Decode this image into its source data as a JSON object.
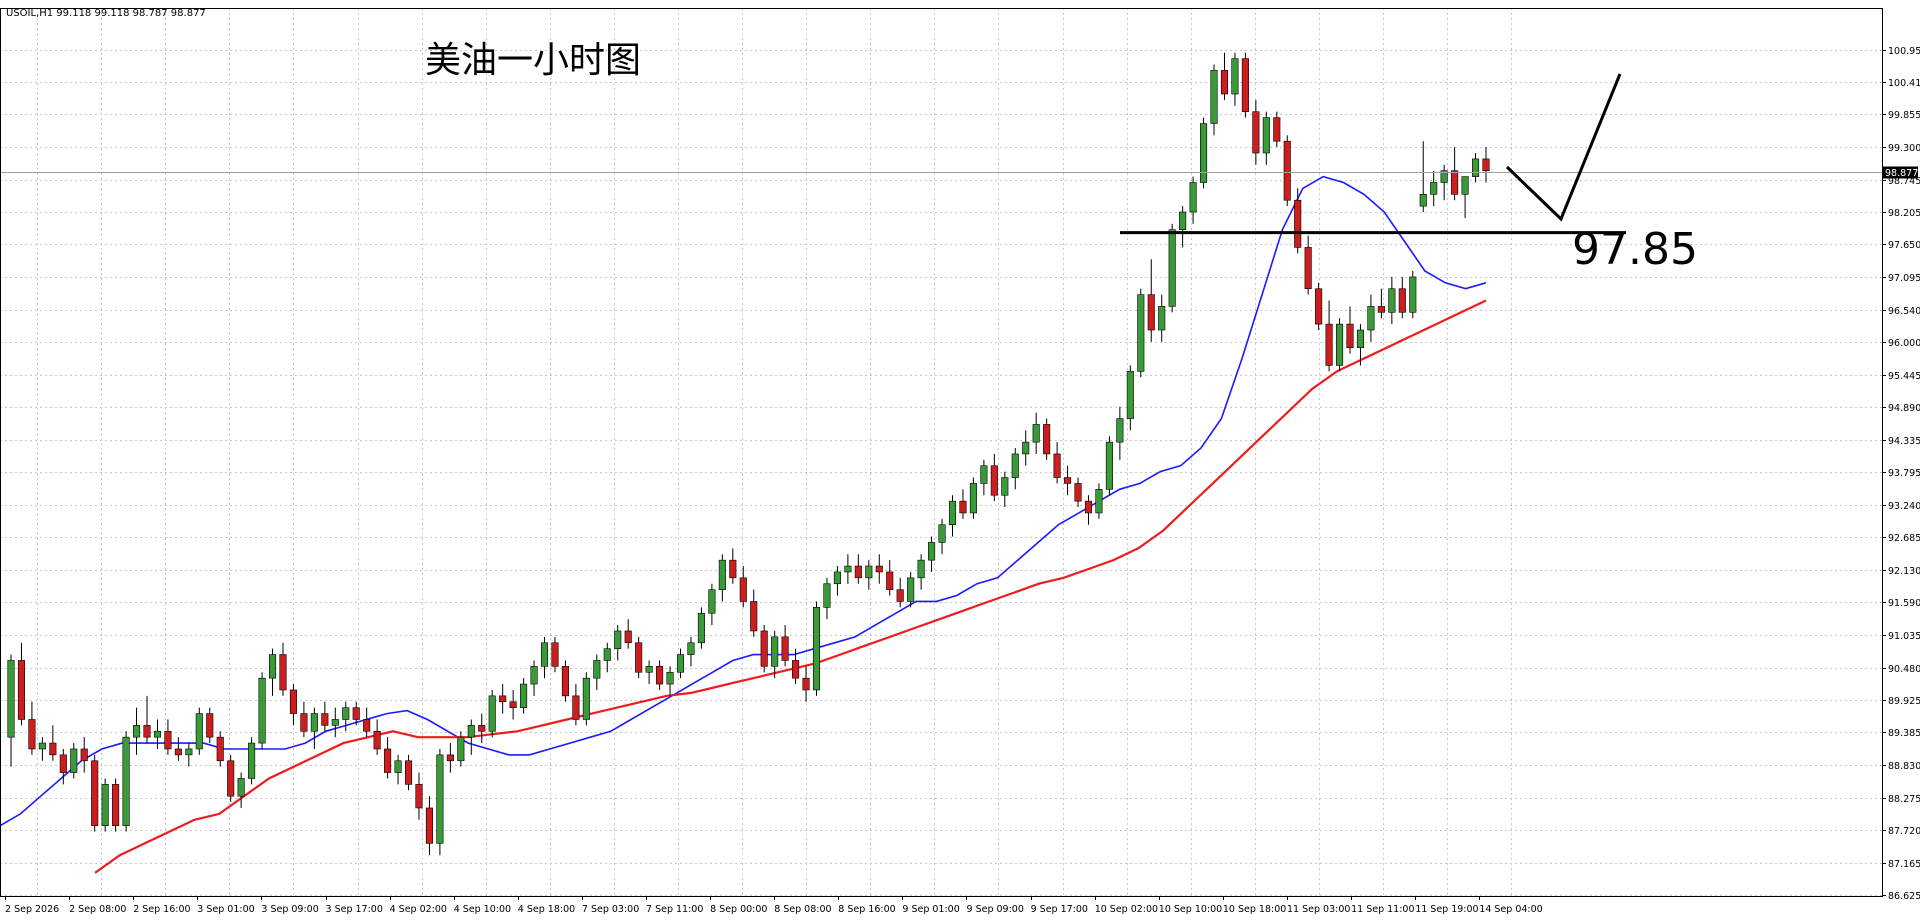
{
  "window": {
    "header": "USOIL,H1  99.118 99.118 98.787 98.877"
  },
  "colors": {
    "background": "#ffffff",
    "grid": "#c8c8c8",
    "frame": "#000000",
    "bull_candle": "#3a9a3a",
    "bear_candle": "#cc1e1e",
    "ma_fast": "#1a1aff",
    "ma_slow": "#ee1c1c",
    "annotation": "#000000"
  },
  "chart_data": {
    "type": "candlestick",
    "symbol": "USOIL",
    "timeframe": "H1",
    "title": "美油一小时图",
    "ylim": [
      86.625,
      101.2
    ],
    "grid": true,
    "y_ticks": [
      "100.950",
      "100.410",
      "99.855",
      "99.300",
      "98.745",
      "98.205",
      "97.650",
      "97.095",
      "96.540",
      "96.000",
      "95.445",
      "94.890",
      "94.335",
      "93.795",
      "93.240",
      "92.685",
      "92.130",
      "91.590",
      "91.035",
      "90.480",
      "89.925",
      "89.385",
      "88.830",
      "88.275",
      "87.720",
      "87.165",
      "86.625"
    ],
    "x_labels": [
      "2 Sep 2026",
      "2 Sep 08:00",
      "2 Sep 16:00",
      "3 Sep 01:00",
      "3 Sep 09:00",
      "3 Sep 17:00",
      "4 Sep 02:00",
      "4 Sep 10:00",
      "4 Sep 18:00",
      "7 Sep 03:00",
      "7 Sep 11:00",
      "8 Sep 00:00",
      "8 Sep 08:00",
      "8 Sep 16:00",
      "9 Sep 01:00",
      "9 Sep 09:00",
      "9 Sep 17:00",
      "10 Sep 02:00",
      "10 Sep 10:00",
      "10 Sep 18:00",
      "11 Sep 03:00",
      "11 Sep 11:00",
      "11 Sep 19:00",
      "14 Sep 04:00"
    ],
    "current_price": 98.877,
    "current_price_label": "98.877",
    "support_level": 97.85,
    "support_label": "97.85",
    "candles": [
      [
        89.3,
        90.7,
        88.8,
        90.6
      ],
      [
        90.6,
        90.9,
        89.5,
        89.6
      ],
      [
        89.6,
        89.9,
        89.0,
        89.1
      ],
      [
        89.1,
        89.3,
        88.9,
        89.2
      ],
      [
        89.2,
        89.5,
        88.9,
        89.0
      ],
      [
        89.0,
        89.1,
        88.5,
        88.7
      ],
      [
        88.7,
        89.2,
        88.6,
        89.1
      ],
      [
        89.1,
        89.3,
        88.7,
        88.9
      ],
      [
        88.9,
        89.0,
        87.7,
        87.8
      ],
      [
        87.8,
        88.6,
        87.7,
        88.5
      ],
      [
        88.5,
        88.6,
        87.7,
        87.8
      ],
      [
        87.8,
        89.4,
        87.7,
        89.3
      ],
      [
        89.3,
        89.8,
        89.0,
        89.5
      ],
      [
        89.5,
        90.0,
        89.2,
        89.3
      ],
      [
        89.3,
        89.6,
        89.1,
        89.4
      ],
      [
        89.4,
        89.6,
        89.0,
        89.1
      ],
      [
        89.1,
        89.3,
        88.9,
        89.0
      ],
      [
        89.0,
        89.2,
        88.8,
        89.1
      ],
      [
        89.1,
        89.8,
        89.0,
        89.7
      ],
      [
        89.7,
        89.8,
        89.2,
        89.3
      ],
      [
        89.3,
        89.4,
        88.8,
        88.9
      ],
      [
        88.9,
        89.0,
        88.2,
        88.3
      ],
      [
        88.3,
        88.7,
        88.1,
        88.6
      ],
      [
        88.6,
        89.3,
        88.5,
        89.2
      ],
      [
        89.2,
        90.4,
        89.1,
        90.3
      ],
      [
        90.3,
        90.8,
        90.0,
        90.7
      ],
      [
        90.7,
        90.9,
        90.0,
        90.1
      ],
      [
        90.1,
        90.2,
        89.5,
        89.7
      ],
      [
        89.7,
        89.9,
        89.3,
        89.4
      ],
      [
        89.4,
        89.8,
        89.1,
        89.7
      ],
      [
        89.7,
        89.9,
        89.4,
        89.5
      ],
      [
        89.5,
        89.8,
        89.3,
        89.6
      ],
      [
        89.6,
        89.9,
        89.4,
        89.8
      ],
      [
        89.8,
        89.9,
        89.5,
        89.6
      ],
      [
        89.6,
        89.8,
        89.3,
        89.4
      ],
      [
        89.4,
        89.6,
        89.0,
        89.1
      ],
      [
        89.1,
        89.3,
        88.6,
        88.7
      ],
      [
        88.7,
        89.0,
        88.5,
        88.9
      ],
      [
        88.9,
        89.0,
        88.4,
        88.5
      ],
      [
        88.5,
        88.7,
        87.9,
        88.1
      ],
      [
        88.1,
        88.3,
        87.3,
        87.5
      ],
      [
        87.5,
        89.1,
        87.3,
        89.0
      ],
      [
        89.0,
        89.2,
        88.7,
        88.9
      ],
      [
        88.9,
        89.4,
        88.8,
        89.3
      ],
      [
        89.3,
        89.6,
        89.0,
        89.5
      ],
      [
        89.5,
        89.7,
        89.2,
        89.4
      ],
      [
        89.4,
        90.1,
        89.3,
        90.0
      ],
      [
        90.0,
        90.2,
        89.7,
        89.9
      ],
      [
        89.9,
        90.1,
        89.6,
        89.8
      ],
      [
        89.8,
        90.3,
        89.7,
        90.2
      ],
      [
        90.2,
        90.6,
        90.0,
        90.5
      ],
      [
        90.5,
        91.0,
        90.3,
        90.9
      ],
      [
        90.9,
        91.0,
        90.4,
        90.5
      ],
      [
        90.5,
        90.6,
        89.9,
        90.0
      ],
      [
        90.0,
        90.2,
        89.5,
        89.6
      ],
      [
        89.6,
        90.4,
        89.5,
        90.3
      ],
      [
        90.3,
        90.7,
        90.1,
        90.6
      ],
      [
        90.6,
        90.9,
        90.4,
        90.8
      ],
      [
        90.8,
        91.2,
        90.6,
        91.1
      ],
      [
        91.1,
        91.3,
        90.8,
        90.9
      ],
      [
        90.9,
        91.0,
        90.3,
        90.4
      ],
      [
        90.4,
        90.6,
        90.2,
        90.5
      ],
      [
        90.5,
        90.6,
        90.1,
        90.2
      ],
      [
        90.2,
        90.5,
        90.0,
        90.4
      ],
      [
        90.4,
        90.8,
        90.3,
        90.7
      ],
      [
        90.7,
        91.0,
        90.5,
        90.9
      ],
      [
        90.9,
        91.5,
        90.8,
        91.4
      ],
      [
        91.4,
        91.9,
        91.2,
        91.8
      ],
      [
        91.8,
        92.4,
        91.6,
        92.3
      ],
      [
        92.3,
        92.5,
        91.9,
        92.0
      ],
      [
        92.0,
        92.2,
        91.5,
        91.6
      ],
      [
        91.6,
        91.8,
        91.0,
        91.1
      ],
      [
        91.1,
        91.2,
        90.4,
        90.5
      ],
      [
        90.5,
        91.1,
        90.3,
        91.0
      ],
      [
        91.0,
        91.2,
        90.5,
        90.6
      ],
      [
        90.6,
        90.8,
        90.2,
        90.3
      ],
      [
        90.3,
        90.5,
        89.9,
        90.1
      ],
      [
        90.1,
        91.6,
        90.0,
        91.5
      ],
      [
        91.5,
        92.0,
        91.3,
        91.9
      ],
      [
        91.9,
        92.2,
        91.7,
        92.1
      ],
      [
        92.1,
        92.4,
        91.9,
        92.2
      ],
      [
        92.2,
        92.4,
        91.9,
        92.0
      ],
      [
        92.0,
        92.3,
        91.8,
        92.2
      ],
      [
        92.2,
        92.4,
        91.9,
        92.1
      ],
      [
        92.1,
        92.3,
        91.7,
        91.8
      ],
      [
        91.8,
        92.0,
        91.5,
        91.6
      ],
      [
        91.6,
        92.1,
        91.5,
        92.0
      ],
      [
        92.0,
        92.4,
        91.8,
        92.3
      ],
      [
        92.3,
        92.7,
        92.1,
        92.6
      ],
      [
        92.6,
        93.0,
        92.4,
        92.9
      ],
      [
        92.9,
        93.4,
        92.7,
        93.3
      ],
      [
        93.3,
        93.5,
        93.0,
        93.1
      ],
      [
        93.1,
        93.7,
        93.0,
        93.6
      ],
      [
        93.6,
        94.0,
        93.4,
        93.9
      ],
      [
        93.9,
        94.1,
        93.3,
        93.4
      ],
      [
        93.4,
        93.8,
        93.2,
        93.7
      ],
      [
        93.7,
        94.2,
        93.5,
        94.1
      ],
      [
        94.1,
        94.5,
        93.9,
        94.3
      ],
      [
        94.3,
        94.8,
        94.1,
        94.6
      ],
      [
        94.6,
        94.7,
        94.0,
        94.1
      ],
      [
        94.1,
        94.3,
        93.6,
        93.7
      ],
      [
        93.7,
        93.9,
        93.4,
        93.6
      ],
      [
        93.6,
        93.7,
        93.2,
        93.3
      ],
      [
        93.3,
        93.4,
        92.9,
        93.1
      ],
      [
        93.1,
        93.6,
        93.0,
        93.5
      ],
      [
        93.5,
        94.4,
        93.4,
        94.3
      ],
      [
        94.3,
        94.9,
        94.0,
        94.7
      ],
      [
        94.7,
        95.6,
        94.5,
        95.5
      ],
      [
        95.5,
        96.9,
        95.4,
        96.8
      ],
      [
        96.8,
        97.4,
        96.0,
        96.2
      ],
      [
        96.2,
        96.8,
        96.0,
        96.6
      ],
      [
        96.6,
        98.0,
        96.5,
        97.9
      ],
      [
        97.9,
        98.3,
        97.6,
        98.2
      ],
      [
        98.2,
        98.8,
        98.0,
        98.7
      ],
      [
        98.7,
        99.8,
        98.6,
        99.7
      ],
      [
        99.7,
        100.7,
        99.5,
        100.6
      ],
      [
        100.6,
        100.9,
        100.1,
        100.2
      ],
      [
        100.2,
        100.9,
        100.0,
        100.8
      ],
      [
        100.8,
        100.9,
        99.8,
        99.9
      ],
      [
        99.9,
        100.1,
        99.0,
        99.2
      ],
      [
        99.2,
        99.9,
        99.0,
        99.8
      ],
      [
        99.8,
        99.9,
        99.3,
        99.4
      ],
      [
        99.4,
        99.5,
        98.3,
        98.4
      ],
      [
        98.4,
        98.6,
        97.5,
        97.6
      ],
      [
        97.6,
        97.8,
        96.8,
        96.9
      ],
      [
        96.9,
        97.0,
        96.2,
        96.3
      ],
      [
        96.3,
        96.7,
        95.5,
        95.6
      ],
      [
        95.6,
        96.4,
        95.5,
        96.3
      ],
      [
        96.3,
        96.6,
        95.8,
        95.9
      ],
      [
        95.9,
        96.3,
        95.6,
        96.2
      ],
      [
        96.2,
        96.8,
        96.0,
        96.6
      ],
      [
        96.6,
        96.9,
        96.4,
        96.5
      ],
      [
        96.5,
        97.1,
        96.3,
        96.9
      ],
      [
        96.9,
        97.1,
        96.4,
        96.5
      ],
      [
        96.5,
        97.2,
        96.4,
        97.1
      ],
      [
        98.3,
        99.4,
        98.2,
        98.5
      ],
      [
        98.5,
        98.9,
        98.3,
        98.7
      ],
      [
        98.7,
        99.0,
        98.4,
        98.9
      ],
      [
        98.9,
        99.3,
        98.4,
        98.5
      ],
      [
        98.5,
        98.8,
        98.1,
        98.8
      ],
      [
        98.8,
        99.2,
        98.7,
        99.1
      ],
      [
        99.1,
        99.3,
        98.7,
        98.9
      ]
    ],
    "series": [
      {
        "values": [
          87.8,
          88.0,
          88.3,
          88.6,
          88.9,
          89.1,
          89.2,
          89.2,
          89.2,
          89.2,
          89.2,
          89.1,
          89.1,
          89.1,
          89.1,
          89.2,
          89.4,
          89.5,
          89.6,
          89.7,
          89.75,
          89.6,
          89.4,
          89.2,
          89.1,
          89.0,
          89.0,
          89.1,
          89.2,
          89.3,
          89.4,
          89.6,
          89.8,
          90.0,
          90.2,
          90.4,
          90.6,
          90.7,
          90.7,
          90.7,
          90.8,
          90.9,
          91.0,
          91.2,
          91.4,
          91.6,
          91.6,
          91.7,
          91.9,
          92.0,
          92.3,
          92.6,
          92.9,
          93.1,
          93.3,
          93.5,
          93.6,
          93.8,
          93.9,
          94.2,
          94.7,
          95.7,
          96.8,
          97.9,
          98.6,
          98.8,
          98.7,
          98.5,
          98.2,
          97.7,
          97.2,
          97.0,
          96.9,
          97.0
        ]
      },
      {
        "values": [
          87.0,
          87.3,
          87.5,
          87.7,
          87.9,
          88.0,
          88.3,
          88.6,
          88.8,
          89.0,
          89.2,
          89.3,
          89.4,
          89.3,
          89.3,
          89.3,
          89.35,
          89.4,
          89.5,
          89.6,
          89.7,
          89.8,
          89.9,
          90.0,
          90.05,
          90.15,
          90.25,
          90.35,
          90.45,
          90.55,
          90.7,
          90.85,
          91.0,
          91.15,
          91.3,
          91.45,
          91.6,
          91.75,
          91.9,
          92.0,
          92.15,
          92.3,
          92.5,
          92.8,
          93.2,
          93.6,
          94.0,
          94.4,
          94.8,
          95.2,
          95.5,
          95.7,
          95.9,
          96.1,
          96.3,
          96.5,
          96.7
        ]
      }
    ]
  }
}
